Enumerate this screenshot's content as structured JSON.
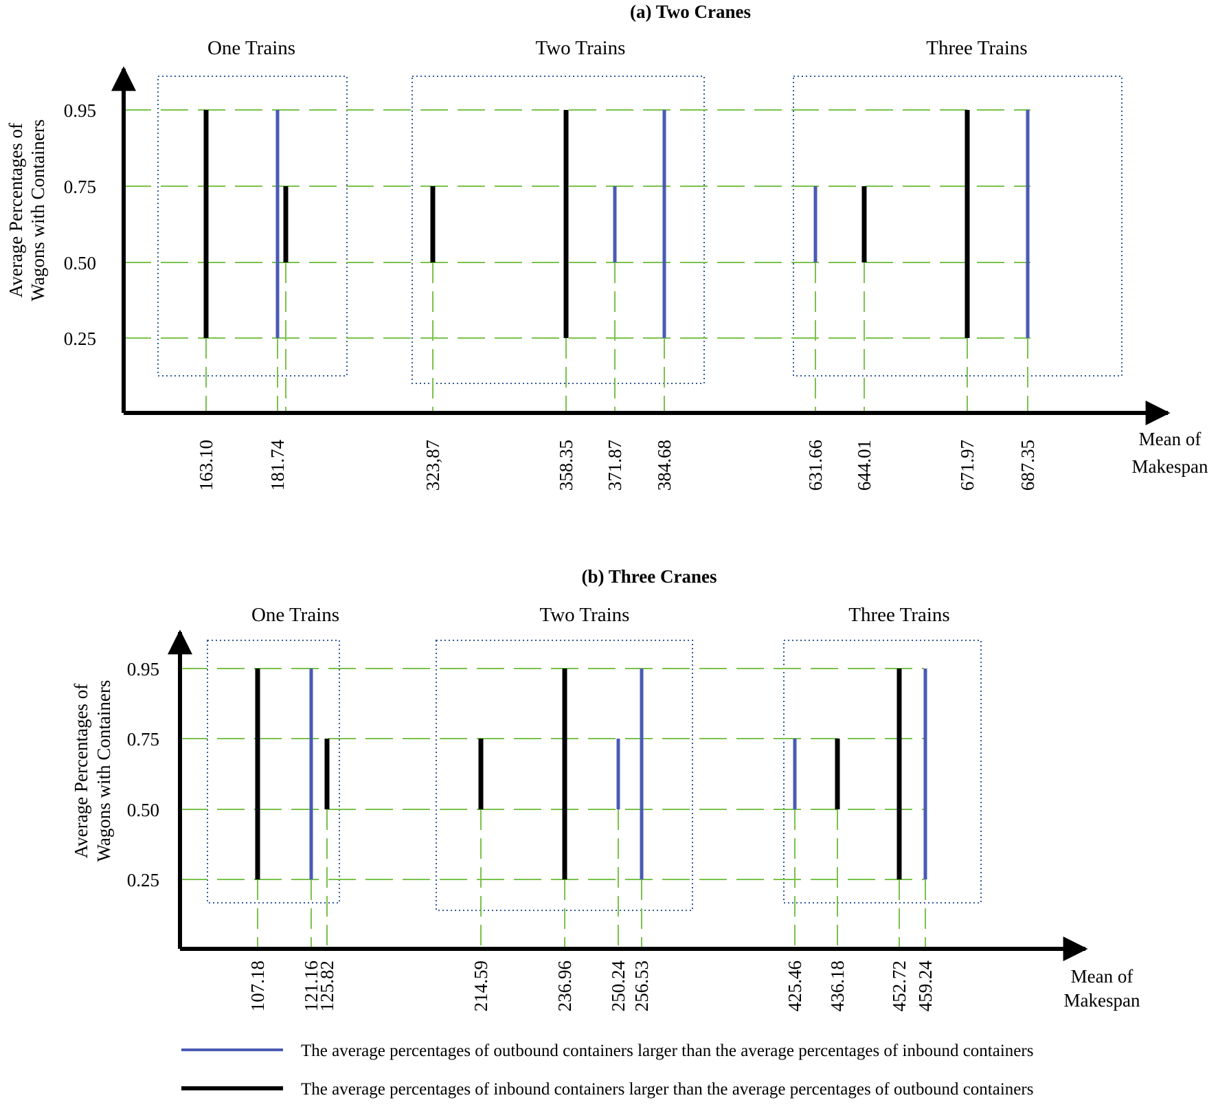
{
  "chart_data": [
    {
      "type": "range-line",
      "title": "(a) Two Cranes",
      "ylabel_line1": "Average Percentages of",
      "ylabel_line2": "Wagons with Containers",
      "xlabel_line1": "Mean of",
      "xlabel_line2": "Makespan",
      "yticks": [
        "0.25",
        "0.50",
        "0.75",
        "0.95"
      ],
      "yvalues": [
        0.25,
        0.5,
        0.75,
        0.95
      ],
      "groups": [
        "One Trains",
        "Two Trains",
        "Three Trains"
      ],
      "bars": [
        {
          "label": "163.10",
          "group": 0,
          "category": "inbound",
          "y_from": 0.25,
          "y_to": 0.95
        },
        {
          "label": "181.74",
          "group": 0,
          "category": "outbound",
          "y_from": 0.25,
          "y_to": 0.95
        },
        {
          "label": "",
          "group": 0,
          "category": "inbound",
          "y_from": 0.5,
          "y_to": 0.75
        },
        {
          "label": "323,87",
          "group": 1,
          "category": "inbound",
          "y_from": 0.5,
          "y_to": 0.75
        },
        {
          "label": "358.35",
          "group": 1,
          "category": "inbound",
          "y_from": 0.25,
          "y_to": 0.95
        },
        {
          "label": "371.87",
          "group": 1,
          "category": "outbound",
          "y_from": 0.5,
          "y_to": 0.75
        },
        {
          "label": "384.68",
          "group": 1,
          "category": "outbound",
          "y_from": 0.25,
          "y_to": 0.95
        },
        {
          "label": "631.66",
          "group": 2,
          "category": "outbound",
          "y_from": 0.5,
          "y_to": 0.75
        },
        {
          "label": "644.01",
          "group": 2,
          "category": "inbound",
          "y_from": 0.5,
          "y_to": 0.75
        },
        {
          "label": "671.97",
          "group": 2,
          "category": "inbound",
          "y_from": 0.25,
          "y_to": 0.95
        },
        {
          "label": "687.35",
          "group": 2,
          "category": "outbound",
          "y_from": 0.25,
          "y_to": 0.95
        }
      ]
    },
    {
      "type": "range-line",
      "title": "(b) Three Cranes",
      "ylabel_line1": "Average Percentages of",
      "ylabel_line2": "Wagons with Containers",
      "xlabel_line1": "Mean of",
      "xlabel_line2": "Makespan",
      "yticks": [
        "0.25",
        "0.50",
        "0.75",
        "0.95"
      ],
      "yvalues": [
        0.25,
        0.5,
        0.75,
        0.95
      ],
      "groups": [
        "One Trains",
        "Two Trains",
        "Three Trains"
      ],
      "bars": [
        {
          "label": "107.18",
          "group": 0,
          "category": "inbound",
          "y_from": 0.25,
          "y_to": 0.95
        },
        {
          "label": "121.16",
          "group": 0,
          "category": "outbound",
          "y_from": 0.25,
          "y_to": 0.95
        },
        {
          "label": "125.82",
          "group": 0,
          "category": "inbound",
          "y_from": 0.5,
          "y_to": 0.75
        },
        {
          "label": "214.59",
          "group": 1,
          "category": "inbound",
          "y_from": 0.5,
          "y_to": 0.75
        },
        {
          "label": "236.96",
          "group": 1,
          "category": "inbound",
          "y_from": 0.25,
          "y_to": 0.95
        },
        {
          "label": "250.24",
          "group": 1,
          "category": "outbound",
          "y_from": 0.5,
          "y_to": 0.75
        },
        {
          "label": "256.53",
          "group": 1,
          "category": "outbound",
          "y_from": 0.25,
          "y_to": 0.95
        },
        {
          "label": "425.46",
          "group": 2,
          "category": "outbound",
          "y_from": 0.5,
          "y_to": 0.75
        },
        {
          "label": "436.18",
          "group": 2,
          "category": "inbound",
          "y_from": 0.5,
          "y_to": 0.75
        },
        {
          "label": "452.72",
          "group": 2,
          "category": "inbound",
          "y_from": 0.25,
          "y_to": 0.95
        },
        {
          "label": "459.24",
          "group": 2,
          "category": "outbound",
          "y_from": 0.25,
          "y_to": 0.95
        }
      ]
    }
  ],
  "legend": {
    "outbound": "The average percentages of outbound containers larger than the average percentages of inbound containers",
    "inbound": "The average percentages of inbound containers larger than the average percentages of outbound containers"
  },
  "colors": {
    "outbound": "#4a5ab5",
    "inbound": "#000000",
    "grid": "#79c24a",
    "box": "#2f5a9a"
  }
}
